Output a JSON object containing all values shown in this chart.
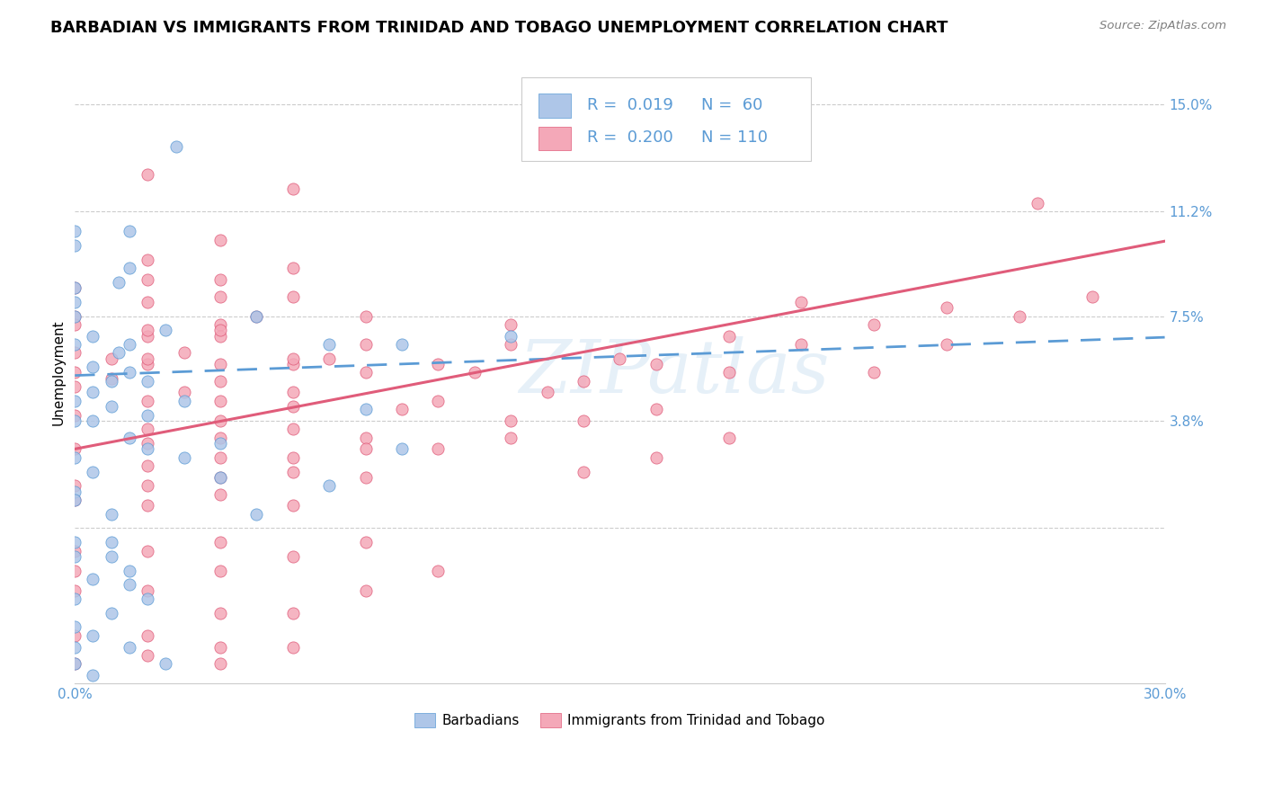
{
  "title": "BARBADIAN VS IMMIGRANTS FROM TRINIDAD AND TOBAGO UNEMPLOYMENT CORRELATION CHART",
  "source": "Source: ZipAtlas.com",
  "ylabel": "Unemployment",
  "yticks": [
    0.0,
    0.038,
    0.075,
    0.112,
    0.15
  ],
  "ytick_labels": [
    "",
    "3.8%",
    "7.5%",
    "11.2%",
    "15.0%"
  ],
  "xmin": 0.0,
  "xmax": 0.3,
  "ymin": -0.055,
  "ymax": 0.165,
  "watermark": "ZIPatlas",
  "barbadian_color": "#aec6e8",
  "trinidad_color": "#f4a8b8",
  "barbadian_line_color": "#5b9bd5",
  "trinidad_line_color": "#e05c7a",
  "barbadian_marker_edge": "#5b9bd5",
  "trinidad_marker_edge": "#e05c7a",
  "title_fontsize": 13,
  "axis_label_fontsize": 11,
  "tick_fontsize": 11,
  "barbadian_R": 0.019,
  "barbadian_N": 60,
  "trinidad_R": 0.2,
  "trinidad_N": 110,
  "barbadian_intercept": 0.054,
  "barbadian_slope": 0.045,
  "trinidad_intercept": 0.028,
  "trinidad_slope": 0.245
}
